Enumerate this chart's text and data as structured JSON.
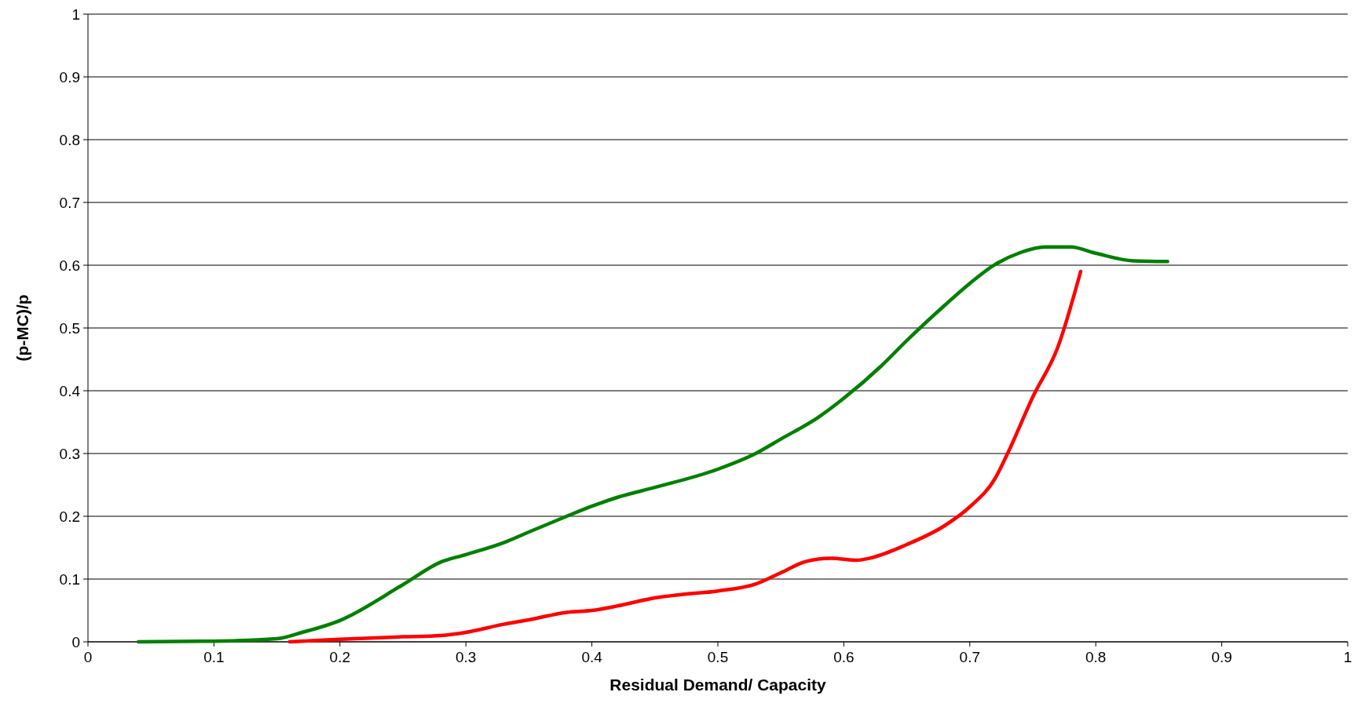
{
  "chart_data": {
    "type": "line",
    "xlabel": "Residual Demand/ Capacity",
    "ylabel": "(p-MC)/p",
    "xlim": [
      0,
      1
    ],
    "ylim": [
      0,
      1
    ],
    "xticks": [
      0,
      0.1,
      0.2,
      0.3,
      0.4,
      0.5,
      0.6,
      0.7,
      0.8,
      0.9,
      1
    ],
    "yticks": [
      0,
      0.1,
      0.2,
      0.3,
      0.4,
      0.5,
      0.6,
      0.7,
      0.8,
      0.9,
      1
    ],
    "grid": "y",
    "marker": "none",
    "line_style": "solid",
    "series": [
      {
        "color": "#008000",
        "x": [
          0.04,
          0.1,
          0.15,
          0.17,
          0.2,
          0.25,
          0.28,
          0.3,
          0.33,
          0.35,
          0.38,
          0.4,
          0.42,
          0.45,
          0.5,
          0.53,
          0.55,
          0.58,
          0.6,
          0.63,
          0.65,
          0.68,
          0.7,
          0.72,
          0.74,
          0.76,
          0.78,
          0.8,
          0.83,
          0.857
        ],
        "values": [
          0,
          0.001,
          0.005,
          0.015,
          0.034,
          0.091,
          0.127,
          0.139,
          0.158,
          0.175,
          0.2,
          0.216,
          0.23,
          0.246,
          0.275,
          0.3,
          0.323,
          0.358,
          0.388,
          0.44,
          0.48,
          0.536,
          0.571,
          0.601,
          0.62,
          0.629,
          0.629,
          0.619,
          0.607,
          0.606
        ]
      },
      {
        "color": "#ff0000",
        "x": [
          0.16,
          0.2,
          0.25,
          0.28,
          0.3,
          0.33,
          0.35,
          0.38,
          0.4,
          0.42,
          0.45,
          0.47,
          0.5,
          0.53,
          0.55,
          0.57,
          0.59,
          0.61,
          0.62,
          0.65,
          0.68,
          0.7,
          0.72,
          0.73,
          0.75,
          0.77,
          0.788
        ],
        "values": [
          0,
          0.004,
          0.008,
          0.01,
          0.015,
          0.028,
          0.035,
          0.047,
          0.05,
          0.057,
          0.07,
          0.075,
          0.081,
          0.092,
          0.11,
          0.128,
          0.133,
          0.13,
          0.133,
          0.155,
          0.185,
          0.215,
          0.26,
          0.3,
          0.39,
          0.47,
          0.59
        ]
      }
    ]
  }
}
